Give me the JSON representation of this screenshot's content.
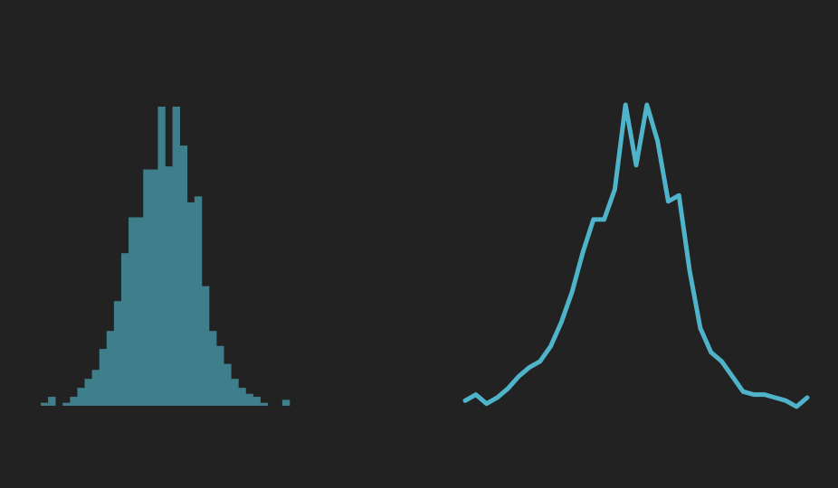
{
  "theme": {
    "background": "#222222",
    "histogram_color": "#3f7e8b",
    "line_color": "#4fb4c9"
  },
  "chart_data": [
    {
      "type": "bar",
      "subtype": "histogram",
      "title": "",
      "xlabel": "",
      "ylabel": "",
      "axes_visible": false,
      "grid": false,
      "ylim": [
        0,
        100
      ],
      "values": [
        1,
        3,
        0,
        1,
        3,
        6,
        9,
        12,
        19,
        25,
        35,
        51,
        63,
        63,
        79,
        79,
        100,
        80,
        100,
        87,
        68,
        70,
        40,
        25,
        20,
        14,
        9,
        6,
        4,
        3,
        1,
        0,
        0,
        2
      ]
    },
    {
      "type": "line",
      "title": "",
      "xlabel": "",
      "ylabel": "",
      "axes_visible": false,
      "grid": false,
      "ylim": [
        0,
        100
      ],
      "values": [
        2,
        4,
        1,
        3,
        6,
        10,
        13,
        15,
        20,
        28,
        38,
        51,
        62,
        62,
        72,
        100,
        80,
        100,
        88,
        68,
        70,
        45,
        26,
        18,
        15,
        10,
        5,
        4,
        4,
        3,
        2,
        0,
        3
      ]
    }
  ]
}
